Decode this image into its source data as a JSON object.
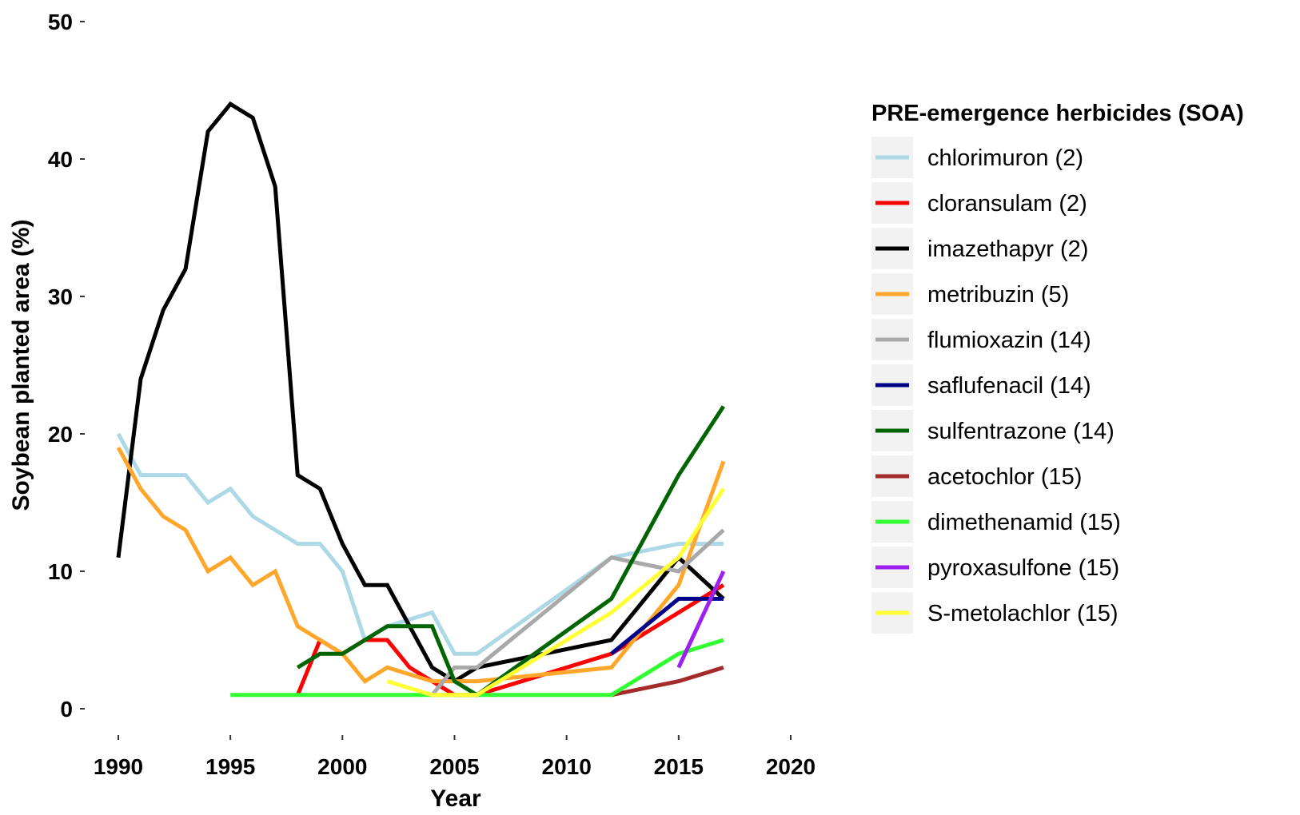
{
  "chart_data": {
    "type": "line",
    "xlabel": "Year",
    "ylabel": "Soybean planted area (%)",
    "xlim": [
      1990,
      2020
    ],
    "ylim": [
      0,
      50
    ],
    "x_ticks": [
      1990,
      1995,
      2000,
      2005,
      2010,
      2015,
      2020
    ],
    "y_ticks": [
      0,
      10,
      20,
      30,
      40,
      50
    ],
    "grid": false,
    "legend": {
      "title": "PRE-emergence herbicides (SOA)",
      "placement": "right"
    },
    "series": [
      {
        "name": "chlorimuron (2)",
        "color": "#add8e6",
        "points": [
          [
            1990,
            20
          ],
          [
            1991,
            17
          ],
          [
            1992,
            17
          ],
          [
            1993,
            17
          ],
          [
            1994,
            15
          ],
          [
            1995,
            16
          ],
          [
            1996,
            14
          ],
          [
            1997,
            13
          ],
          [
            1998,
            12
          ],
          [
            1999,
            12
          ],
          [
            2000,
            10
          ],
          [
            2001,
            5
          ],
          [
            2002,
            6
          ],
          [
            2003,
            6.5
          ],
          [
            2004,
            7
          ],
          [
            2005,
            4
          ],
          [
            2006,
            4
          ],
          [
            2012,
            11
          ],
          [
            2015,
            12
          ],
          [
            2017,
            12
          ]
        ]
      },
      {
        "name": "cloransulam (2)",
        "color": "#ff0000",
        "points": [
          [
            1998,
            1
          ],
          [
            1999,
            5
          ],
          [
            2000,
            4
          ],
          [
            2001,
            5
          ],
          [
            2002,
            5
          ],
          [
            2003,
            3
          ],
          [
            2004,
            2
          ],
          [
            2005,
            1
          ],
          [
            2006,
            1
          ],
          [
            2012,
            4
          ],
          [
            2015,
            7
          ],
          [
            2017,
            9
          ]
        ]
      },
      {
        "name": "imazethapyr (2)",
        "color": "#000000",
        "points": [
          [
            1990,
            11
          ],
          [
            1991,
            24
          ],
          [
            1992,
            29
          ],
          [
            1993,
            32
          ],
          [
            1994,
            42
          ],
          [
            1995,
            44
          ],
          [
            1996,
            43
          ],
          [
            1997,
            38
          ],
          [
            1998,
            17
          ],
          [
            1999,
            16
          ],
          [
            2000,
            12
          ],
          [
            2001,
            9
          ],
          [
            2002,
            9
          ],
          [
            2003,
            6
          ],
          [
            2004,
            3
          ],
          [
            2005,
            2
          ],
          [
            2006,
            3
          ],
          [
            2012,
            5
          ],
          [
            2015,
            11
          ],
          [
            2017,
            8
          ]
        ]
      },
      {
        "name": "metribuzin (5)",
        "color": "#ffa62b",
        "points": [
          [
            1990,
            19
          ],
          [
            1991,
            16
          ],
          [
            1992,
            14
          ],
          [
            1993,
            13
          ],
          [
            1994,
            10
          ],
          [
            1995,
            11
          ],
          [
            1996,
            9
          ],
          [
            1997,
            10
          ],
          [
            1998,
            6
          ],
          [
            1999,
            5
          ],
          [
            2000,
            4
          ],
          [
            2001,
            2
          ],
          [
            2002,
            3
          ],
          [
            2003,
            2.5
          ],
          [
            2004,
            2
          ],
          [
            2005,
            2
          ],
          [
            2006,
            2
          ],
          [
            2012,
            3
          ],
          [
            2015,
            9
          ],
          [
            2017,
            18
          ]
        ]
      },
      {
        "name": "flumioxazin (14)",
        "color": "#a9a9a9",
        "points": [
          [
            2004,
            1
          ],
          [
            2005,
            3
          ],
          [
            2006,
            3
          ],
          [
            2012,
            11
          ],
          [
            2015,
            10
          ],
          [
            2017,
            13
          ]
        ]
      },
      {
        "name": "saflufenacil (14)",
        "color": "#00008b",
        "points": [
          [
            2012,
            4
          ],
          [
            2015,
            8
          ],
          [
            2017,
            8
          ]
        ]
      },
      {
        "name": "sulfentrazone (14)",
        "color": "#006400",
        "points": [
          [
            1998,
            3
          ],
          [
            1999,
            4
          ],
          [
            2000,
            4
          ],
          [
            2001,
            5
          ],
          [
            2002,
            6
          ],
          [
            2003,
            6
          ],
          [
            2004,
            6
          ],
          [
            2005,
            2
          ],
          [
            2006,
            1
          ],
          [
            2012,
            8
          ],
          [
            2015,
            17
          ],
          [
            2017,
            22
          ]
        ]
      },
      {
        "name": "acetochlor (15)",
        "color": "#a52a2a",
        "points": [
          [
            2012,
            1
          ],
          [
            2015,
            2
          ],
          [
            2017,
            3
          ]
        ]
      },
      {
        "name": "dimethenamid (15)",
        "color": "#32ff32",
        "points": [
          [
            1995,
            1
          ],
          [
            2000,
            1
          ],
          [
            2005,
            1
          ],
          [
            2006,
            1
          ],
          [
            2012,
            1
          ],
          [
            2015,
            4
          ],
          [
            2017,
            5
          ]
        ]
      },
      {
        "name": "pyroxasulfone (15)",
        "color": "#a020f0",
        "points": [
          [
            2015,
            3
          ],
          [
            2017,
            10
          ]
        ]
      },
      {
        "name": "S-metolachlor (15)",
        "color": "#ffff33",
        "points": [
          [
            2002,
            2
          ],
          [
            2004,
            1
          ],
          [
            2005,
            1
          ],
          [
            2006,
            1
          ],
          [
            2012,
            7
          ],
          [
            2015,
            11
          ],
          [
            2017,
            16
          ]
        ]
      }
    ]
  }
}
